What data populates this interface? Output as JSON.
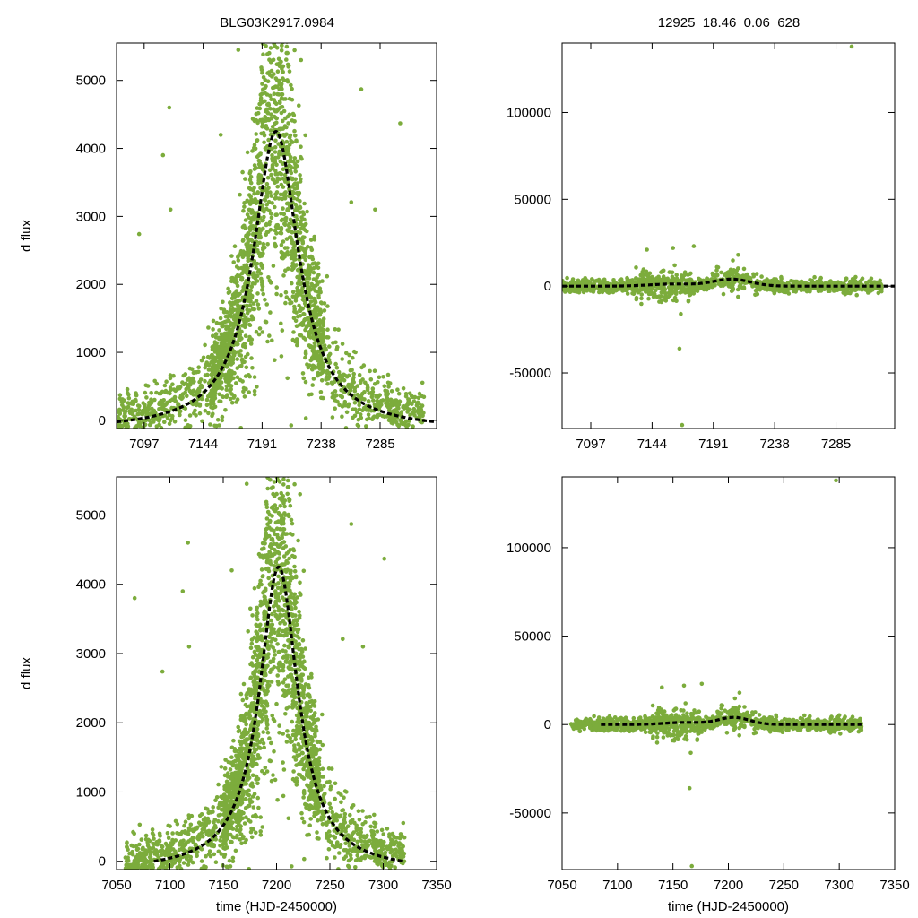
{
  "header": {
    "left_title": "BLG03K2917.0984",
    "right_title": "12925  18.46  0.06  628"
  },
  "colors": {
    "points": "#7cac3c",
    "model": "#000000",
    "frame": "#000000"
  },
  "model": {
    "t0": 7202,
    "peak": 4250,
    "tE": 22,
    "baseline": -150
  },
  "chart_data": [
    {
      "id": "top-left",
      "type": "scatter",
      "title": "BLG03K2917.0984",
      "ylabel": "d flux",
      "xlabel": "",
      "xlim": [
        7075,
        7330
      ],
      "ylim": [
        -120,
        5550
      ],
      "xticks": [
        7097,
        7144,
        7191,
        7238,
        7285
      ],
      "yticks": [
        0,
        1000,
        2000,
        3000,
        4000,
        5000
      ],
      "series": [
        {
          "name": "observations",
          "kind": "points",
          "note": "dense green photometry points, peak near 7202"
        },
        {
          "name": "model",
          "kind": "dashed-line",
          "note": "black dashed microlensing fit"
        }
      ]
    },
    {
      "id": "top-right",
      "type": "scatter",
      "title": "12925  18.46  0.06  628",
      "ylabel": "",
      "xlabel": "",
      "xlim": [
        7075,
        7330
      ],
      "ylim": [
        -82000,
        140000
      ],
      "xticks": [
        7097,
        7144,
        7191,
        7238,
        7285
      ],
      "yticks": [
        -50000,
        0,
        50000,
        100000
      ],
      "series": [
        {
          "name": "observations",
          "kind": "points"
        },
        {
          "name": "model",
          "kind": "dashed-line"
        }
      ]
    },
    {
      "id": "bottom-left",
      "type": "scatter",
      "title": "",
      "ylabel": "d flux",
      "xlabel": "time (HJD-2450000)",
      "xlim": [
        7050,
        7350
      ],
      "ylim": [
        -120,
        5550
      ],
      "xticks": [
        7050,
        7100,
        7150,
        7200,
        7250,
        7300,
        7350
      ],
      "yticks": [
        0,
        1000,
        2000,
        3000,
        4000,
        5000
      ],
      "series": [
        {
          "name": "observations",
          "kind": "points"
        },
        {
          "name": "model",
          "kind": "dashed-line"
        }
      ]
    },
    {
      "id": "bottom-right",
      "type": "scatter",
      "title": "",
      "ylabel": "",
      "xlabel": "time (HJD-2450000)",
      "xlim": [
        7050,
        7350
      ],
      "ylim": [
        -82000,
        140000
      ],
      "xticks": [
        7050,
        7100,
        7150,
        7200,
        7250,
        7300,
        7350
      ],
      "yticks": [
        -50000,
        0,
        50000,
        100000
      ],
      "series": [
        {
          "name": "observations",
          "kind": "points"
        },
        {
          "name": "model",
          "kind": "dashed-line"
        }
      ]
    }
  ]
}
